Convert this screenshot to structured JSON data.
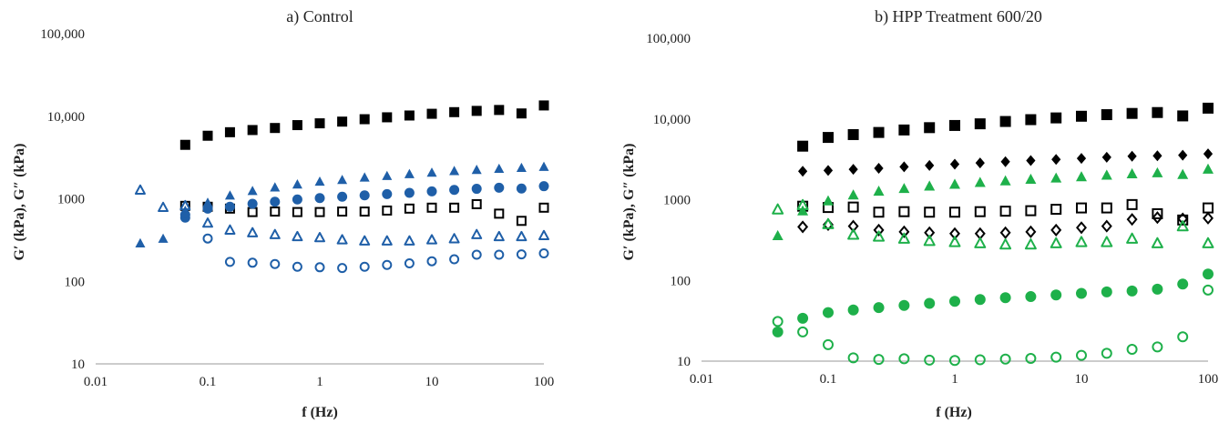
{
  "chart_data": [
    {
      "type": "scatter",
      "title": "a) Control",
      "xlabel": "f (Hz)",
      "ylabel": "G′ (kPa), G″ (kPa)",
      "xscale": "log",
      "yscale": "log",
      "xlim": [
        0.01,
        100
      ],
      "ylim": [
        10,
        100000
      ],
      "xticks": [
        "0.01",
        "0.1",
        "1",
        "10",
        "100"
      ],
      "yticks": [
        "10",
        "100",
        "1000",
        "10,000",
        "100,000"
      ],
      "grid": false,
      "series": [
        {
          "marker": "square",
          "filled": true,
          "color": "#000000",
          "x": [
            0.063,
            0.1,
            0.158,
            0.251,
            0.398,
            0.631,
            1,
            1.585,
            2.512,
            3.981,
            6.31,
            10,
            15.85,
            25.12,
            39.81,
            63.1,
            100
          ],
          "y": [
            4500,
            5800,
            6400,
            6800,
            7200,
            7800,
            8200,
            8600,
            9200,
            9700,
            10200,
            10700,
            11200,
            11600,
            11900,
            10800,
            13500
          ]
        },
        {
          "marker": "square",
          "filled": false,
          "color": "#000000",
          "x": [
            0.063,
            0.1,
            0.158,
            0.251,
            0.398,
            0.631,
            1,
            1.585,
            2.512,
            3.981,
            6.31,
            10,
            15.85,
            25.12,
            39.81,
            63.1,
            100
          ],
          "y": [
            820,
            800,
            760,
            690,
            700,
            690,
            690,
            700,
            700,
            720,
            760,
            780,
            780,
            860,
            660,
            540,
            780
          ]
        },
        {
          "marker": "triangle",
          "filled": true,
          "color": "#1f5fa8",
          "x": [
            0.025,
            0.04,
            0.063,
            0.1,
            0.158,
            0.251,
            0.398,
            0.631,
            1,
            1.585,
            2.512,
            3.981,
            6.31,
            10,
            15.85,
            25.12,
            39.81,
            63.1,
            100
          ],
          "y": [
            290,
            330,
            720,
            900,
            1100,
            1250,
            1380,
            1500,
            1620,
            1700,
            1820,
            1900,
            2000,
            2080,
            2180,
            2250,
            2320,
            2380,
            2450
          ]
        },
        {
          "marker": "triangle",
          "filled": false,
          "color": "#1f5fa8",
          "x": [
            0.025,
            0.04,
            0.063,
            0.1,
            0.158,
            0.251,
            0.398,
            0.631,
            1,
            1.585,
            2.512,
            3.981,
            6.31,
            10,
            15.85,
            25.12,
            39.81,
            63.1,
            100
          ],
          "y": [
            1280,
            790,
            830,
            510,
            420,
            390,
            370,
            350,
            340,
            320,
            310,
            310,
            310,
            320,
            330,
            370,
            350,
            350,
            360
          ]
        },
        {
          "marker": "circle",
          "filled": true,
          "color": "#1f5fa8",
          "x": [
            0.063,
            0.1,
            0.158,
            0.251,
            0.398,
            0.631,
            1,
            1.585,
            2.512,
            3.981,
            6.31,
            10,
            15.85,
            25.12,
            39.81,
            63.1,
            100
          ],
          "y": [
            590,
            760,
            800,
            870,
            920,
            980,
            1020,
            1060,
            1100,
            1140,
            1180,
            1230,
            1280,
            1320,
            1360,
            1330,
            1420
          ]
        },
        {
          "marker": "circle",
          "filled": false,
          "color": "#1f5fa8",
          "x": [
            0.063,
            0.1,
            0.158,
            0.251,
            0.398,
            0.631,
            1,
            1.585,
            2.512,
            3.981,
            6.31,
            10,
            15.85,
            25.12,
            39.81,
            63.1,
            100
          ],
          "y": [
            640,
            330,
            172,
            168,
            162,
            150,
            148,
            145,
            150,
            158,
            165,
            175,
            185,
            210,
            210,
            212,
            218
          ]
        }
      ]
    },
    {
      "type": "scatter",
      "title": "b) HPP Treatment 600/20",
      "xlabel": "f (Hz)",
      "ylabel": "G′ (kPa), G″ (kPa)",
      "xscale": "log",
      "yscale": "log",
      "xlim": [
        0.01,
        100
      ],
      "ylim": [
        10,
        100000
      ],
      "xticks": [
        "0.01",
        "0.1",
        "1",
        "10",
        "100"
      ],
      "yticks": [
        "10",
        "100",
        "1000",
        "10,000",
        "100,000"
      ],
      "grid": false,
      "series": [
        {
          "marker": "square",
          "filled": true,
          "color": "#000000",
          "x": [
            0.063,
            0.1,
            0.158,
            0.251,
            0.398,
            0.631,
            1,
            1.585,
            2.512,
            3.981,
            6.31,
            10,
            15.85,
            25.12,
            39.81,
            63.1,
            100
          ],
          "y": [
            4600,
            5900,
            6400,
            6800,
            7300,
            7800,
            8300,
            8700,
            9300,
            9800,
            10300,
            10800,
            11300,
            11700,
            12000,
            10900,
            13600
          ]
        },
        {
          "marker": "square",
          "filled": false,
          "color": "#000000",
          "x": [
            0.063,
            0.1,
            0.158,
            0.251,
            0.398,
            0.631,
            1,
            1.585,
            2.512,
            3.981,
            6.31,
            10,
            15.85,
            25.12,
            39.81,
            63.1,
            100
          ],
          "y": [
            830,
            800,
            810,
            700,
            710,
            700,
            700,
            710,
            720,
            730,
            760,
            790,
            790,
            870,
            670,
            560,
            790
          ]
        },
        {
          "marker": "diamond",
          "filled": true,
          "color": "#000000",
          "x": [
            0.063,
            0.1,
            0.158,
            0.251,
            0.398,
            0.631,
            1,
            1.585,
            2.512,
            3.981,
            6.31,
            10,
            15.85,
            25.12,
            39.81,
            63.1,
            100
          ],
          "y": [
            2250,
            2300,
            2380,
            2450,
            2550,
            2650,
            2750,
            2850,
            2950,
            3050,
            3150,
            3250,
            3350,
            3450,
            3500,
            3550,
            3700
          ]
        },
        {
          "marker": "diamond",
          "filled": false,
          "color": "#000000",
          "x": [
            0.063,
            0.1,
            0.158,
            0.251,
            0.398,
            0.631,
            1,
            1.585,
            2.512,
            3.981,
            6.31,
            10,
            15.85,
            25.12,
            39.81,
            63.1,
            100
          ],
          "y": [
            460,
            490,
            470,
            420,
            400,
            390,
            380,
            380,
            390,
            400,
            420,
            450,
            470,
            570,
            600,
            580,
            590
          ]
        },
        {
          "marker": "triangle",
          "filled": true,
          "color": "#1eb04a",
          "x": [
            0.04,
            0.063,
            0.1,
            0.158,
            0.251,
            0.398,
            0.631,
            1,
            1.585,
            2.512,
            3.981,
            6.31,
            10,
            15.85,
            25.12,
            39.81,
            63.1,
            100
          ],
          "y": [
            360,
            730,
            970,
            1150,
            1280,
            1380,
            1480,
            1560,
            1640,
            1720,
            1800,
            1860,
            1930,
            2020,
            2100,
            2160,
            2060,
            2400
          ]
        },
        {
          "marker": "triangle",
          "filled": false,
          "color": "#1eb04a",
          "x": [
            0.04,
            0.063,
            0.1,
            0.158,
            0.251,
            0.398,
            0.631,
            1,
            1.585,
            2.512,
            3.981,
            6.31,
            10,
            15.85,
            25.12,
            39.81,
            63.1,
            100
          ],
          "y": [
            760,
            860,
            500,
            370,
            350,
            330,
            310,
            300,
            290,
            280,
            280,
            290,
            300,
            300,
            330,
            290,
            470,
            290
          ]
        },
        {
          "marker": "circle",
          "filled": true,
          "color": "#1eb04a",
          "x": [
            0.04,
            0.063,
            0.1,
            0.158,
            0.251,
            0.398,
            0.631,
            1,
            1.585,
            2.512,
            3.981,
            6.31,
            10,
            15.85,
            25.12,
            39.81,
            63.1,
            100
          ],
          "y": [
            23,
            34,
            40,
            43,
            46,
            49,
            52,
            55,
            58,
            61,
            63,
            66,
            69,
            72,
            74,
            78,
            90,
            120
          ]
        },
        {
          "marker": "circle",
          "filled": false,
          "color": "#1eb04a",
          "x": [
            0.04,
            0.063,
            0.1,
            0.158,
            0.251,
            0.398,
            0.631,
            1,
            1.585,
            2.512,
            3.981,
            6.31,
            10,
            15.85,
            25.12,
            39.81,
            63.1,
            100
          ],
          "y": [
            31,
            23,
            16,
            11,
            10.5,
            10.7,
            10.3,
            10.2,
            10.4,
            10.6,
            10.8,
            11.2,
            11.8,
            12.5,
            14,
            15,
            20,
            76
          ]
        }
      ]
    }
  ]
}
